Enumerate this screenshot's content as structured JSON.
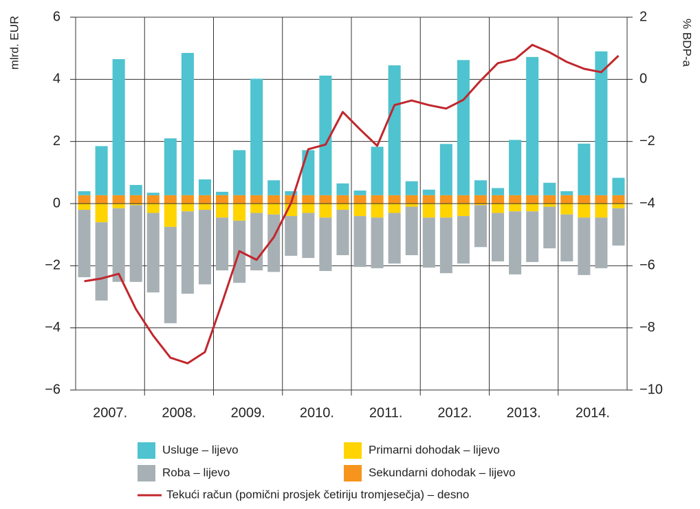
{
  "chart_data": {
    "type": "bar",
    "stacked": true,
    "y_label": "mlrd. EUR",
    "y2_label": "% BDP-a",
    "categories": [
      null,
      "2007.",
      null,
      null,
      null,
      "2008.",
      null,
      null,
      null,
      "2009.",
      null,
      null,
      null,
      "2010.",
      null,
      null,
      null,
      "2011.",
      null,
      null,
      null,
      "2012.",
      null,
      null,
      null,
      "2013.",
      null,
      null,
      null,
      "2014.",
      null,
      null
    ],
    "ylim": [
      -6,
      6
    ],
    "yticks": [
      {
        "value": -6,
        "label": "−6"
      },
      {
        "value": -4,
        "label": "−4"
      },
      {
        "value": -2,
        "label": "−2"
      },
      0,
      2,
      4,
      6
    ],
    "y2lim": [
      -10,
      2
    ],
    "y2ticks": [
      {
        "value": -10,
        "label": "−10"
      },
      {
        "value": -8,
        "label": "−8"
      },
      {
        "value": -6,
        "label": "−6"
      },
      {
        "value": -4,
        "label": "−4"
      },
      {
        "value": -2,
        "label": "−2"
      },
      0,
      2
    ],
    "grid": true,
    "series": [
      {
        "name": "Sekundarni dohodak – lijevo",
        "color": "#f7941d",
        "values": [
          0.27,
          0.27,
          0.27,
          0.27,
          0.27,
          0.27,
          0.27,
          0.27,
          0.27,
          0.27,
          0.27,
          0.27,
          0.27,
          0.27,
          0.27,
          0.27,
          0.27,
          0.27,
          0.27,
          0.27,
          0.27,
          0.27,
          0.27,
          0.27,
          0.27,
          0.27,
          0.27,
          0.27,
          0.27,
          0.27,
          0.27,
          0.27
        ]
      },
      {
        "name": "Primarni dohodak – lijevo",
        "color": "#ffd400",
        "values": [
          -0.2,
          -0.6,
          -0.15,
          -0.05,
          -0.3,
          -0.75,
          -0.25,
          -0.2,
          -0.45,
          -0.55,
          -0.3,
          -0.35,
          -0.4,
          -0.3,
          -0.45,
          -0.2,
          -0.4,
          -0.45,
          -0.3,
          -0.1,
          -0.45,
          -0.45,
          -0.4,
          -0.05,
          -0.3,
          -0.25,
          -0.25,
          -0.1,
          -0.35,
          -0.45,
          -0.45,
          -0.15
        ]
      },
      {
        "name": "Usluge – lijevo",
        "color": "#4fc3cf",
        "values": [
          0.13,
          1.58,
          4.38,
          0.33,
          0.08,
          1.83,
          4.58,
          0.51,
          0.11,
          1.45,
          3.75,
          0.48,
          0.13,
          1.45,
          3.85,
          0.38,
          0.15,
          1.56,
          4.18,
          0.45,
          0.18,
          1.65,
          4.35,
          0.48,
          0.23,
          1.78,
          4.45,
          0.4,
          0.13,
          1.66,
          4.63,
          0.56
        ]
      },
      {
        "name": "Roba – lijevo",
        "color": "#a7b1b5",
        "values": [
          -2.17,
          -2.52,
          -2.37,
          -2.47,
          -2.56,
          -3.1,
          -2.65,
          -2.4,
          -1.7,
          -2.0,
          -1.85,
          -1.85,
          -1.28,
          -1.45,
          -1.72,
          -1.46,
          -1.64,
          -1.63,
          -1.63,
          -1.56,
          -1.61,
          -1.79,
          -1.53,
          -1.35,
          -1.56,
          -2.03,
          -1.63,
          -1.34,
          -1.51,
          -1.85,
          -1.63,
          -1.2
        ]
      },
      {
        "name": "Tekući račun (pomični prosjek četiriju tromjesečja) – desno",
        "color": "#c0272d",
        "type": "line",
        "axis": "y2",
        "values": [
          -6.5,
          -6.41,
          -6.26,
          -7.4,
          -8.25,
          -8.96,
          -9.14,
          -8.78,
          -7.19,
          -5.53,
          -5.81,
          -5.08,
          -3.98,
          -2.25,
          -2.1,
          -1.05,
          -1.61,
          -2.14,
          -0.83,
          -0.68,
          -0.83,
          -0.94,
          -0.66,
          -0.04,
          0.52,
          0.65,
          1.11,
          0.87,
          0.56,
          0.34,
          0.23,
          0.76
        ]
      }
    ]
  }
}
